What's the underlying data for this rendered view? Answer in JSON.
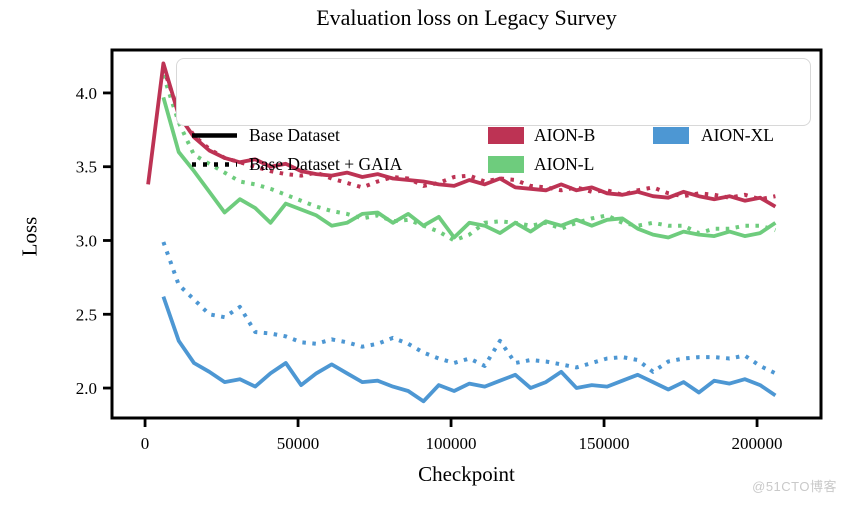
{
  "watermark": "@51CTO博客",
  "colors": {
    "aion_b": "#bd3354",
    "aion_l": "#6ecc7d",
    "aion_xl": "#4d97d3",
    "axis": "#000000",
    "legend_border": "#d8d8d8",
    "watermark_gray": "#c9c9c9"
  },
  "chart_data": {
    "type": "line",
    "title": "Evaluation loss on Legacy Survey",
    "xlabel": "Checkpoint",
    "ylabel": "Loss",
    "xlim": [
      -10800,
      220900
    ],
    "ylim": [
      1.797,
      4.291
    ],
    "xticks": [
      0,
      50000,
      100000,
      150000,
      200000
    ],
    "yticks": [
      2.0,
      2.5,
      3.0,
      3.5,
      4.0
    ],
    "grid": false,
    "legend": {
      "position": "upper center",
      "linestyle_entries": [
        {
          "label": "Base Dataset",
          "style": "solid"
        },
        {
          "label": "Base Dataset + GAIA",
          "style": "dotted"
        }
      ],
      "color_entries": [
        {
          "label": "AION-B",
          "color": "#bd3354"
        },
        {
          "label": "AION-L",
          "color": "#6ecc7d"
        },
        {
          "label": "AION-XL",
          "color": "#4d97d3"
        }
      ]
    },
    "series": [
      {
        "name": "AION-XL / Base Dataset",
        "model": "AION-XL",
        "dataset": "Base Dataset",
        "style": "solid",
        "color": "#4d97d3",
        "x": [
          6000,
          11000,
          16000,
          21000,
          26000,
          31000,
          36000,
          41000,
          46000,
          51000,
          56000,
          61000,
          66000,
          71000,
          76000,
          81000,
          86000,
          91000,
          96000,
          101000,
          106000,
          111000,
          116000,
          121000,
          126000,
          131000,
          136000,
          141000,
          146000,
          151000,
          156000,
          161000,
          166000,
          171000,
          176000,
          181000,
          186000,
          191000,
          196000,
          201000,
          206000
        ],
        "y": [
          2.62,
          2.32,
          2.17,
          2.11,
          2.04,
          2.06,
          2.01,
          2.1,
          2.17,
          2.02,
          2.1,
          2.16,
          2.1,
          2.04,
          2.05,
          2.01,
          1.98,
          1.91,
          2.02,
          1.98,
          2.03,
          2.01,
          2.05,
          2.09,
          2.0,
          2.04,
          2.11,
          2.0,
          2.02,
          2.01,
          2.05,
          2.09,
          2.04,
          1.99,
          2.04,
          1.97,
          2.05,
          2.03,
          2.06,
          2.02,
          1.95
        ]
      },
      {
        "name": "AION-XL / Base Dataset + GAIA",
        "model": "AION-XL",
        "dataset": "Base Dataset + GAIA",
        "style": "dotted",
        "color": "#4d97d3",
        "x": [
          6000,
          11000,
          16000,
          21000,
          26000,
          31000,
          36000,
          41000,
          46000,
          51000,
          56000,
          61000,
          66000,
          71000,
          76000,
          81000,
          86000,
          91000,
          96000,
          101000,
          106000,
          111000,
          116000,
          121000,
          126000,
          131000,
          136000,
          141000,
          146000,
          151000,
          156000,
          161000,
          166000,
          171000,
          176000,
          181000,
          186000,
          191000,
          196000,
          201000,
          206000
        ],
        "y": [
          2.99,
          2.7,
          2.6,
          2.5,
          2.48,
          2.55,
          2.38,
          2.37,
          2.35,
          2.31,
          2.3,
          2.33,
          2.31,
          2.28,
          2.3,
          2.34,
          2.3,
          2.24,
          2.2,
          2.17,
          2.2,
          2.15,
          2.32,
          2.17,
          2.19,
          2.18,
          2.16,
          2.14,
          2.17,
          2.2,
          2.21,
          2.19,
          2.11,
          2.18,
          2.2,
          2.21,
          2.21,
          2.2,
          2.22,
          2.15,
          2.1
        ]
      },
      {
        "name": "AION-L / Base Dataset",
        "model": "AION-L",
        "dataset": "Base Dataset",
        "style": "solid",
        "color": "#6ecc7d",
        "x": [
          6000,
          11000,
          16000,
          21000,
          26000,
          31000,
          36000,
          41000,
          46000,
          51000,
          56000,
          61000,
          66000,
          71000,
          76000,
          81000,
          86000,
          91000,
          96000,
          101000,
          106000,
          111000,
          116000,
          121000,
          126000,
          131000,
          136000,
          141000,
          146000,
          151000,
          156000,
          161000,
          166000,
          171000,
          176000,
          181000,
          186000,
          191000,
          196000,
          201000,
          206000
        ],
        "y": [
          3.97,
          3.6,
          3.47,
          3.33,
          3.19,
          3.28,
          3.22,
          3.12,
          3.25,
          3.21,
          3.17,
          3.1,
          3.12,
          3.18,
          3.19,
          3.12,
          3.18,
          3.1,
          3.16,
          3.02,
          3.12,
          3.1,
          3.05,
          3.12,
          3.06,
          3.13,
          3.1,
          3.14,
          3.1,
          3.14,
          3.15,
          3.08,
          3.04,
          3.02,
          3.06,
          3.04,
          3.03,
          3.06,
          3.03,
          3.05,
          3.12
        ]
      },
      {
        "name": "AION-L / Base Dataset + GAIA",
        "model": "AION-L",
        "dataset": "Base Dataset + GAIA",
        "style": "dotted",
        "color": "#6ecc7d",
        "x": [
          6000,
          11000,
          16000,
          21000,
          26000,
          31000,
          36000,
          41000,
          46000,
          51000,
          56000,
          61000,
          66000,
          71000,
          76000,
          81000,
          86000,
          91000,
          96000,
          101000,
          106000,
          111000,
          116000,
          121000,
          126000,
          131000,
          136000,
          141000,
          146000,
          151000,
          156000,
          161000,
          166000,
          171000,
          176000,
          181000,
          186000,
          191000,
          196000,
          201000,
          206000
        ],
        "y": [
          4.12,
          3.8,
          3.58,
          3.52,
          3.46,
          3.4,
          3.38,
          3.35,
          3.31,
          3.27,
          3.23,
          3.2,
          3.18,
          3.15,
          3.17,
          3.13,
          3.14,
          3.1,
          3.06,
          3.0,
          3.04,
          3.12,
          3.13,
          3.12,
          3.1,
          3.12,
          3.08,
          3.12,
          3.15,
          3.17,
          3.12,
          3.1,
          3.12,
          3.1,
          3.1,
          3.05,
          3.08,
          3.08,
          3.1,
          3.1,
          3.07
        ]
      },
      {
        "name": "AION-B / Base Dataset",
        "model": "AION-B",
        "dataset": "Base Dataset",
        "style": "solid",
        "color": "#bd3354",
        "x": [
          1000,
          6000,
          11000,
          16000,
          21000,
          26000,
          31000,
          36000,
          41000,
          46000,
          51000,
          56000,
          61000,
          66000,
          71000,
          76000,
          81000,
          86000,
          91000,
          96000,
          101000,
          106000,
          111000,
          116000,
          121000,
          126000,
          131000,
          136000,
          141000,
          146000,
          151000,
          156000,
          161000,
          166000,
          171000,
          176000,
          181000,
          186000,
          191000,
          196000,
          201000,
          206000
        ],
        "y": [
          3.38,
          4.2,
          3.85,
          3.7,
          3.61,
          3.56,
          3.53,
          3.55,
          3.5,
          3.52,
          3.47,
          3.45,
          3.44,
          3.46,
          3.43,
          3.45,
          3.42,
          3.41,
          3.4,
          3.38,
          3.37,
          3.41,
          3.38,
          3.42,
          3.36,
          3.35,
          3.34,
          3.38,
          3.34,
          3.36,
          3.32,
          3.31,
          3.33,
          3.3,
          3.29,
          3.33,
          3.3,
          3.28,
          3.3,
          3.27,
          3.29,
          3.23
        ]
      },
      {
        "name": "AION-B / Base Dataset + GAIA",
        "model": "AION-B",
        "dataset": "Base Dataset + GAIA",
        "style": "dotted",
        "color": "#bd3354",
        "x": [
          6000,
          11000,
          16000,
          21000,
          26000,
          31000,
          36000,
          41000,
          46000,
          51000,
          56000,
          61000,
          66000,
          71000,
          76000,
          81000,
          86000,
          91000,
          96000,
          101000,
          106000,
          111000,
          116000,
          121000,
          126000,
          131000,
          136000,
          141000,
          146000,
          151000,
          156000,
          161000,
          166000,
          171000,
          176000,
          181000,
          186000,
          191000,
          196000,
          201000,
          206000
        ],
        "y": [
          4.17,
          3.87,
          3.71,
          3.62,
          3.56,
          3.53,
          3.5,
          3.47,
          3.45,
          3.44,
          3.46,
          3.42,
          3.39,
          3.36,
          3.4,
          3.43,
          3.42,
          3.37,
          3.39,
          3.43,
          3.44,
          3.4,
          3.42,
          3.41,
          3.37,
          3.36,
          3.34,
          3.36,
          3.33,
          3.34,
          3.31,
          3.34,
          3.36,
          3.32,
          3.3,
          3.32,
          3.31,
          3.29,
          3.31,
          3.28,
          3.3
        ]
      }
    ]
  }
}
